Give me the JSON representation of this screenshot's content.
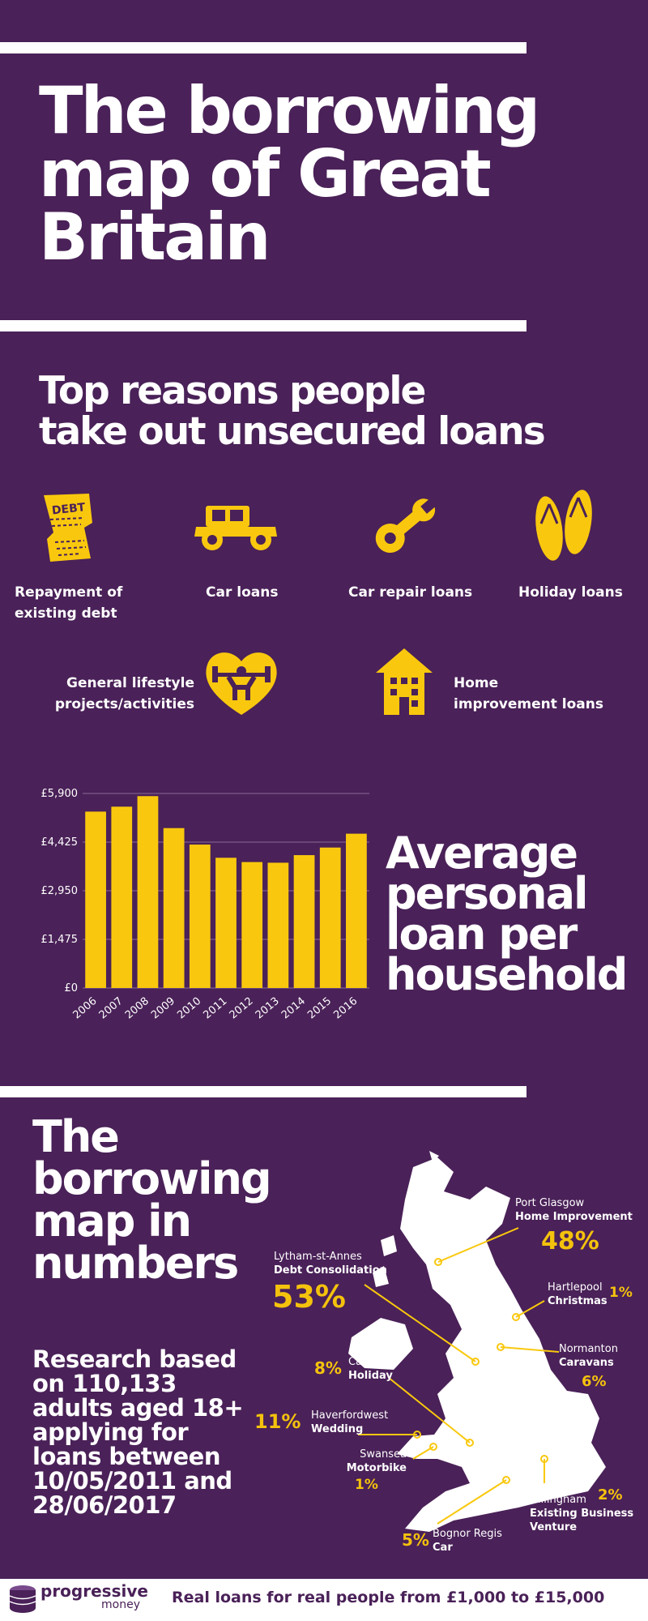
{
  "title": "The borrowing map of Great Britain",
  "reasons": {
    "heading_line1": "Top reasons people",
    "heading_line2": "take out unsecured loans",
    "items": [
      {
        "label_line1": "Repayment of",
        "label_line2": "existing debt",
        "icon": "debt-paper-icon"
      },
      {
        "label_line1": "Car loans",
        "label_line2": "",
        "icon": "car-icon"
      },
      {
        "label_line1": "Car repair loans",
        "label_line2": "",
        "icon": "wrench-icon"
      },
      {
        "label_line1": "Holiday loans",
        "label_line2": "",
        "icon": "flip-flops-icon"
      },
      {
        "label_line1": "General lifestyle",
        "label_line2": "projects/activities",
        "icon": "heart-weightlifter-icon"
      },
      {
        "label_line1": "Home",
        "label_line2": "improvement loans",
        "icon": "house-icon"
      }
    ],
    "debt_icon_text": "DEBT"
  },
  "chart_data": {
    "type": "bar",
    "title": "Average personal loan per household",
    "title_lines": [
      "Average",
      "personal",
      "loan per",
      "household"
    ],
    "categories": [
      "2006",
      "2007",
      "2008",
      "2009",
      "2010",
      "2011",
      "2012",
      "2013",
      "2014",
      "2015",
      "2016"
    ],
    "values": [
      5350,
      5500,
      5820,
      4850,
      4350,
      3950,
      3820,
      3800,
      4030,
      4260,
      4680
    ],
    "y_ticks": [
      "£0",
      "£1,475",
      "£2,950",
      "£4,425",
      "£5,900"
    ],
    "y_tick_values": [
      0,
      1475,
      2950,
      4425,
      5900
    ],
    "ylim": [
      0,
      5900
    ],
    "grid": true,
    "bar_color": "#f9c80e"
  },
  "map_section": {
    "title_lines": [
      "The",
      "borrowing",
      "map in",
      "numbers"
    ],
    "research_lines": [
      "Research based",
      "on 110,133",
      "adults aged 18+",
      "applying for",
      "loans between",
      "10/05/2011 and",
      "28/06/2017"
    ],
    "locations": [
      {
        "place": "Port Glasgow",
        "category": "Home Improvement",
        "percent": "48%"
      },
      {
        "place": "Lytham-st-Annes",
        "category": "Debt Consolidation",
        "percent": "53%"
      },
      {
        "place": "Hartlepool",
        "category": "Christmas",
        "percent": "1%"
      },
      {
        "place": "Normanton",
        "category": "Caravans",
        "percent": "6%"
      },
      {
        "place": "Caldicot",
        "category": "Holiday",
        "percent": "8%"
      },
      {
        "place": "Haverfordwest",
        "category": "Wedding",
        "percent": "11%"
      },
      {
        "place": "Swansea",
        "category": "Motorbike",
        "percent": "1%"
      },
      {
        "place": "Gillingham",
        "category_line1": "Existing Business",
        "category_line2": "Venture",
        "percent": "2%"
      },
      {
        "place": "Bognor Regis",
        "category": "Car",
        "percent": "5%"
      }
    ]
  },
  "footer": {
    "brand_line1": "progressive",
    "brand_line2": "money",
    "tagline": "Real loans for real people from £1,000 to £15,000"
  },
  "colors": {
    "background": "#4a2158",
    "accent": "#f9c80e",
    "text": "#ffffff"
  }
}
